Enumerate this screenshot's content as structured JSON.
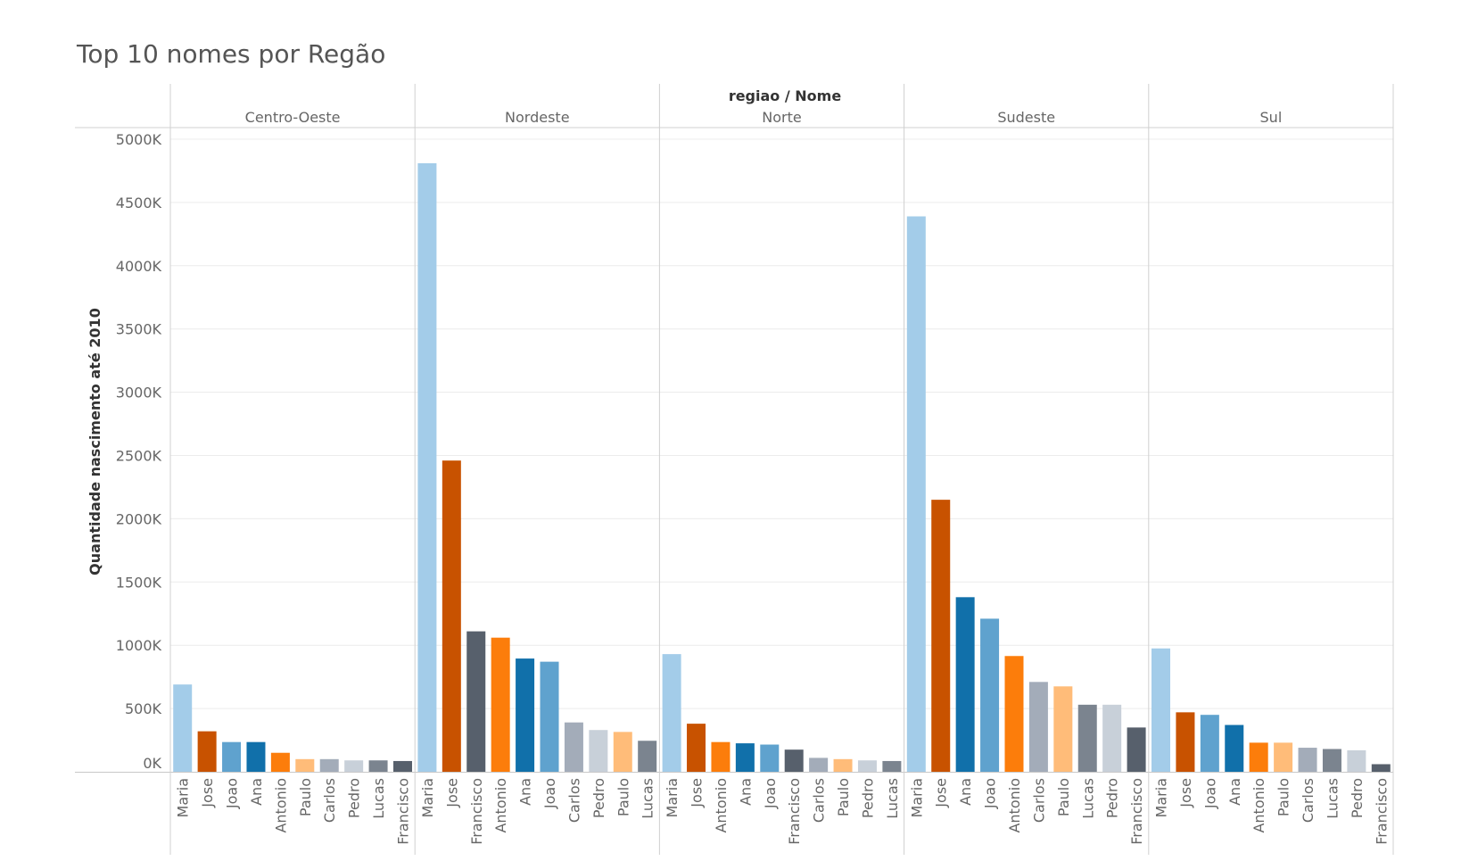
{
  "title": "Top 10 nomes por Regão",
  "chart_data": {
    "type": "bar",
    "title": "Top 10 nomes por Regão",
    "header": "regiao / Nome",
    "ylabel": "Quantidade nascimento até 2010",
    "ylim": [
      0,
      5000000
    ],
    "yticks": [
      0,
      500000,
      1000000,
      1500000,
      2000000,
      2500000,
      3000000,
      3500000,
      4000000,
      4500000,
      5000000
    ],
    "ytick_labels": [
      "0K",
      "500K",
      "1000K",
      "1500K",
      "2000K",
      "2500K",
      "3000K",
      "3500K",
      "4000K",
      "4500K",
      "5000K"
    ],
    "grid": true,
    "colors": {
      "Maria": "#a3cce9",
      "Jose": "#c85200",
      "Joao": "#5fa2ce",
      "Ana": "#1170aa",
      "Antonio": "#fc7d0b",
      "Paulo": "#ffbc79",
      "Carlos": "#a3acb9",
      "Pedro": "#c8d0d9",
      "Lucas": "#7b848f",
      "Francisco": "#57606c"
    },
    "panels": [
      {
        "region": "Centro-Oeste",
        "names": [
          "Maria",
          "Jose",
          "Joao",
          "Ana",
          "Antonio",
          "Paulo",
          "Carlos",
          "Pedro",
          "Lucas",
          "Francisco"
        ],
        "values": [
          690000,
          320000,
          235000,
          235000,
          150000,
          100000,
          100000,
          90000,
          90000,
          85000
        ]
      },
      {
        "region": "Nordeste",
        "names": [
          "Maria",
          "Jose",
          "Francisco",
          "Antonio",
          "Ana",
          "Joao",
          "Carlos",
          "Pedro",
          "Paulo",
          "Lucas"
        ],
        "values": [
          4810000,
          2460000,
          1110000,
          1060000,
          895000,
          870000,
          390000,
          330000,
          315000,
          245000
        ]
      },
      {
        "region": "Norte",
        "names": [
          "Maria",
          "Jose",
          "Antonio",
          "Ana",
          "Joao",
          "Francisco",
          "Carlos",
          "Paulo",
          "Pedro",
          "Lucas"
        ],
        "values": [
          930000,
          380000,
          235000,
          225000,
          215000,
          175000,
          110000,
          100000,
          90000,
          85000
        ]
      },
      {
        "region": "Sudeste",
        "names": [
          "Maria",
          "Jose",
          "Ana",
          "Joao",
          "Antonio",
          "Carlos",
          "Paulo",
          "Lucas",
          "Pedro",
          "Francisco"
        ],
        "values": [
          4390000,
          2150000,
          1380000,
          1210000,
          915000,
          710000,
          675000,
          530000,
          530000,
          350000
        ]
      },
      {
        "region": "Sul",
        "names": [
          "Maria",
          "Jose",
          "Joao",
          "Ana",
          "Antonio",
          "Paulo",
          "Carlos",
          "Lucas",
          "Pedro",
          "Francisco"
        ],
        "values": [
          975000,
          470000,
          450000,
          370000,
          230000,
          230000,
          190000,
          180000,
          170000,
          60000
        ]
      }
    ]
  }
}
